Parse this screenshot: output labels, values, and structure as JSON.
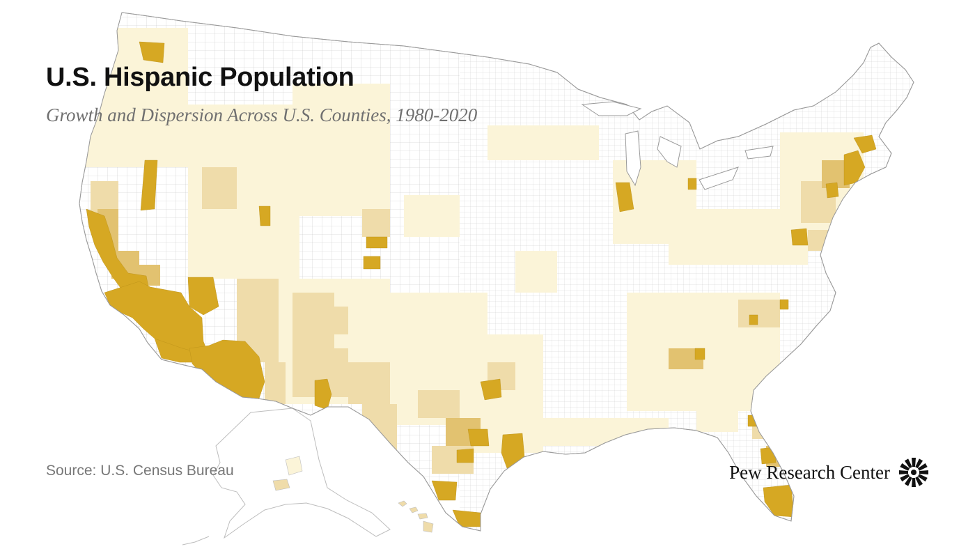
{
  "title": "U.S. Hispanic Population",
  "subtitle": "Growth and Dispersion Across U.S. Counties, 1980-2020",
  "source": "Source: U.S. Census Bureau",
  "logo": {
    "text": "Pew Research Center",
    "icon": "pew-sunburst-icon"
  },
  "map": {
    "region": "United States counties (contiguous U.S., Alaska, Hawaii)",
    "colors": {
      "none": "#ffffff",
      "low": "#fbf4d8",
      "medium": "#efdcaa",
      "high": "#e2c270",
      "highest": "#d6a823",
      "border": "#b9b9b9"
    }
  }
}
